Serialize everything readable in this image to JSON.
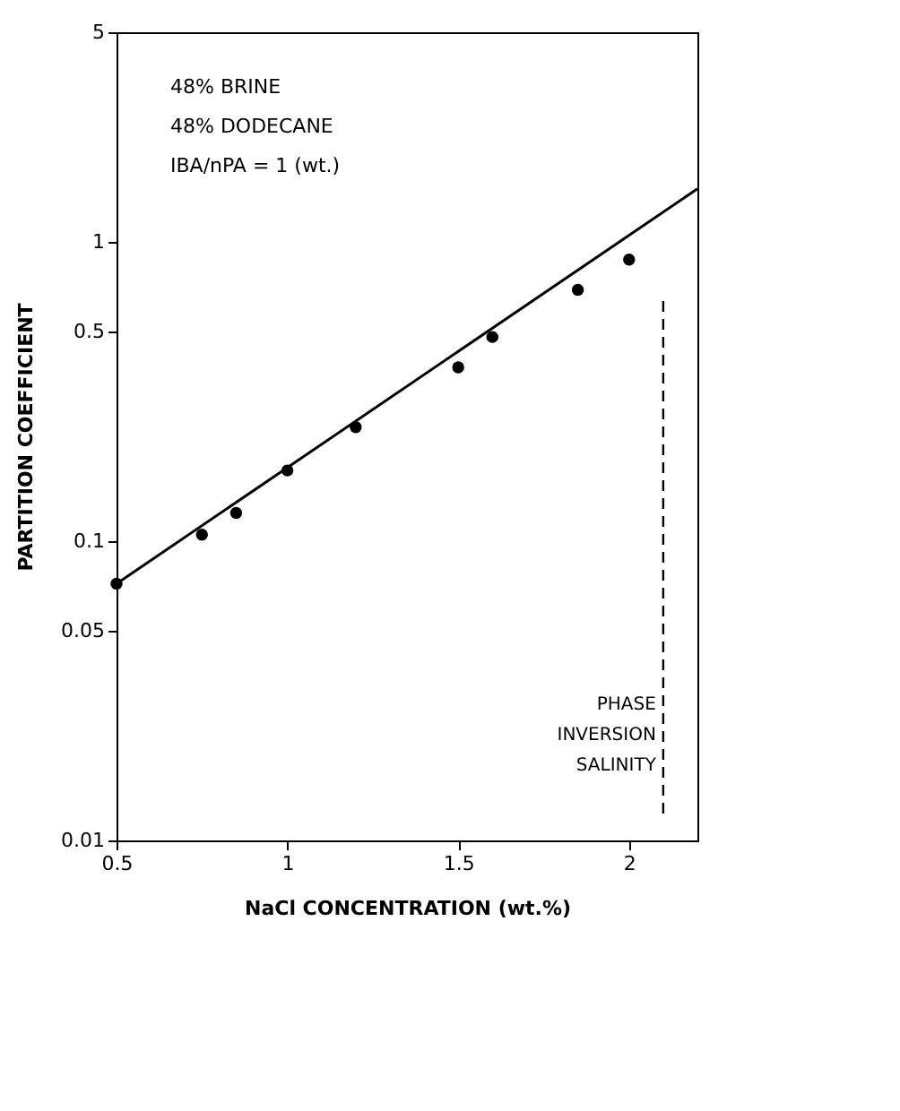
{
  "chart_data": {
    "type": "scatter",
    "xlabel": "NaCl CONCENTRATION (wt.%)",
    "ylabel": "PARTITION COEFFICIENT",
    "x": [
      0.5,
      0.75,
      0.85,
      1.0,
      1.2,
      1.5,
      1.6,
      1.85,
      2.0
    ],
    "series": [
      {
        "color": "#000000",
        "values": [
          0.072,
          0.105,
          0.124,
          0.172,
          0.24,
          0.38,
          0.48,
          0.69,
          0.87
        ]
      },
      {
        "type": "line",
        "marker": "none",
        "color": "#000000",
        "x": [
          0.5,
          2.2
        ],
        "values": [
          0.072,
          1.5
        ]
      }
    ],
    "marker": "circle",
    "log": "y",
    "grid": false,
    "xlim": [
      0.5,
      2.2
    ],
    "xticks": [
      0.5,
      1,
      1.5,
      2
    ],
    "ylim": [
      0.01,
      5
    ],
    "yticks": [
      0.01,
      0.05,
      0.1,
      0.5,
      1,
      5
    ],
    "ref_lines": [
      {
        "axis": "x",
        "value": 2.1,
        "label": "PHASE INVERSION SALINITY",
        "line_style": "dashed",
        "color": "#000000"
      }
    ],
    "annotations": [
      "48% BRINE",
      "48% DODECANE",
      "IBA/nPA = 1 (wt.)"
    ]
  }
}
